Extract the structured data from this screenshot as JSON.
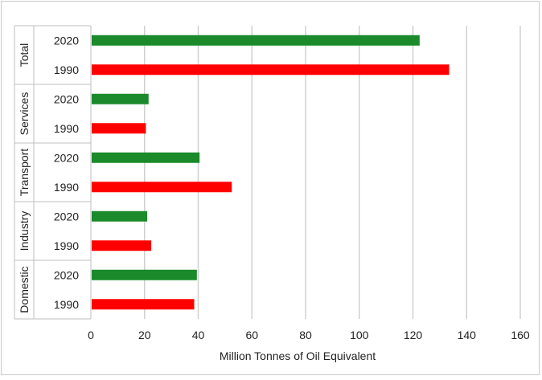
{
  "chart_data": {
    "type": "bar",
    "orientation": "horizontal",
    "groups": [
      {
        "label": "Total",
        "rows": [
          {
            "year": "2020",
            "value": 122.5
          },
          {
            "year": "1990",
            "value": 133.5
          }
        ]
      },
      {
        "label": "Services",
        "rows": [
          {
            "year": "2020",
            "value": 21.5
          },
          {
            "year": "1990",
            "value": 20.5
          }
        ]
      },
      {
        "label": "Transport",
        "rows": [
          {
            "year": "2020",
            "value": 40.5
          },
          {
            "year": "1990",
            "value": 52.5
          }
        ]
      },
      {
        "label": "Industry",
        "rows": [
          {
            "year": "2020",
            "value": 21.0
          },
          {
            "year": "1990",
            "value": 22.5
          }
        ]
      },
      {
        "label": "Domestic",
        "rows": [
          {
            "year": "2020",
            "value": 39.5
          },
          {
            "year": "1990",
            "value": 38.5
          }
        ]
      }
    ],
    "xlabel": "Million Tonnes of Oil Equivalent",
    "xlim": [
      0,
      160
    ],
    "xticks": [
      0,
      20,
      40,
      60,
      80,
      100,
      120,
      140,
      160
    ],
    "grid": true,
    "legend": "none",
    "colors": {
      "2020": "#1a8a2a",
      "1990": "#ff0000",
      "grid": "#d0d0d0",
      "axis": "#bfbfbf"
    }
  }
}
